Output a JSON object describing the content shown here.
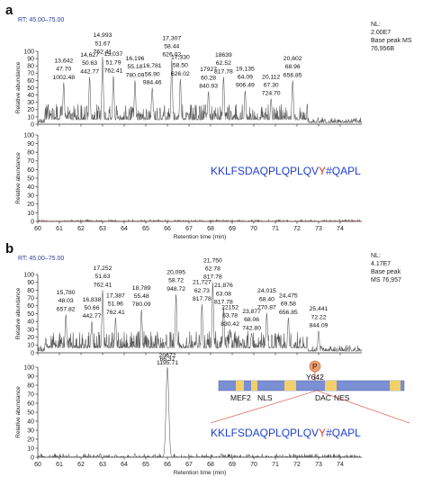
{
  "panels": [
    {
      "letter": "a",
      "rt_range": "RT: 45.00–75.00",
      "nl_lines": [
        "NL:",
        "2.00E7",
        "Base peak MS",
        "76,956B"
      ],
      "chart_data": [
        {
          "type": "line",
          "xlim": [
            60,
            75
          ],
          "ylim": [
            0,
            100
          ],
          "xticks": [
            60,
            61,
            62,
            63,
            64,
            65,
            66,
            67,
            68,
            69,
            70,
            71,
            72,
            73,
            74
          ],
          "yticks": [
            0,
            10,
            20,
            30,
            40,
            50,
            60,
            70,
            80,
            90,
            100
          ],
          "ylabel": "Relative abundance",
          "peaks": [
            {
              "x": 61.2,
              "y": 57,
              "label": [
                "13,642",
                "47.70",
                "1002.48"
              ]
            },
            {
              "x": 62.4,
              "y": 65,
              "label": [
                "14,627",
                "50.63",
                "442.77"
              ]
            },
            {
              "x": 63.0,
              "y": 92,
              "label": [
                "14,993",
                "51.67",
                "762.41"
              ]
            },
            {
              "x": 63.5,
              "y": 66,
              "label": [
                "15,037",
                "51.79",
                "762.41"
              ]
            },
            {
              "x": 64.5,
              "y": 60,
              "label": [
                "16,196",
                "55.18",
                "780.09"
              ]
            },
            {
              "x": 65.3,
              "y": 50,
              "label": [
                "16,781",
                "56.90",
                "984.46"
              ]
            },
            {
              "x": 66.2,
              "y": 88,
              "label": [
                "17,307",
                "58.44",
                "626.02"
              ]
            },
            {
              "x": 66.6,
              "y": 62,
              "label": [
                "17,330",
                "58.50",
                "626.02"
              ]
            },
            {
              "x": 67.9,
              "y": 45,
              "label": [
                "17927",
                "60.28",
                "840.93"
              ]
            },
            {
              "x": 68.6,
              "y": 65,
              "label": [
                "18639",
                "62.52",
                "817.78"
              ]
            },
            {
              "x": 69.6,
              "y": 46,
              "label": [
                "19,135",
                "64.09",
                "906.49"
              ]
            },
            {
              "x": 70.8,
              "y": 35,
              "label": [
                "20,112",
                "67.30",
                "724.70"
              ]
            },
            {
              "x": 71.8,
              "y": 60,
              "label": [
                "20,602",
                "68.96",
                "656.85"
              ]
            }
          ]
        },
        {
          "type": "line",
          "xlim": [
            60,
            75
          ],
          "ylim": [
            0,
            100
          ],
          "xticks": [
            60,
            61,
            62,
            63,
            64,
            65,
            66,
            67,
            68,
            69,
            70,
            71,
            72,
            73,
            74
          ],
          "yticks": [
            0,
            10,
            20,
            30,
            40,
            50,
            60,
            70,
            80,
            90,
            100
          ],
          "ylabel": "Relative abundance",
          "xlabel": "Retention time (min)",
          "peaks": []
        }
      ],
      "sequence": {
        "before": "KKLFSDAQPLQPLQV",
        "site": "Y",
        "after": "#QAPL"
      }
    },
    {
      "letter": "b",
      "rt_range": "RT: 45.00–75.00",
      "nl_lines": [
        "NL:",
        "4.17E7",
        "Base peak",
        "MS 76,957"
      ],
      "chart_data": [
        {
          "type": "line",
          "xlim": [
            60,
            75
          ],
          "ylim": [
            0,
            100
          ],
          "xticks": [
            60,
            61,
            62,
            63,
            64,
            65,
            66,
            67,
            68,
            69,
            70,
            71,
            72,
            73,
            74
          ],
          "yticks": [
            0,
            10,
            20,
            30,
            40,
            50,
            60,
            70,
            80,
            90,
            100
          ],
          "ylabel": "Relative abundance",
          "peaks": [
            {
              "x": 61.3,
              "y": 49,
              "label": [
                "15,780",
                "48.03",
                "657.82"
              ]
            },
            {
              "x": 62.5,
              "y": 40,
              "label": [
                "16,838",
                "50.66",
                "442.77"
              ]
            },
            {
              "x": 63.0,
              "y": 80,
              "label": [
                "17,252",
                "51.63",
                "762.41"
              ]
            },
            {
              "x": 63.6,
              "y": 45,
              "label": [
                "17,387",
                "51.96",
                "762.41"
              ]
            },
            {
              "x": 64.8,
              "y": 55,
              "label": [
                "18,789",
                "55.48",
                "780.09"
              ]
            },
            {
              "x": 66.4,
              "y": 75,
              "label": [
                "20,095",
                "58.72",
                "948.72"
              ]
            },
            {
              "x": 67.6,
              "y": 62,
              "label": [
                "21,727",
                "62.73",
                "817.78"
              ]
            },
            {
              "x": 68.1,
              "y": 90,
              "label": [
                "21,750",
                "62.78",
                "817.78"
              ]
            },
            {
              "x": 68.6,
              "y": 58,
              "label": [
                "21,876",
                "63.08",
                "817.78"
              ]
            },
            {
              "x": 68.9,
              "y": 30,
              "label": [
                "22152",
                "63.78",
                "830.42"
              ]
            },
            {
              "x": 69.9,
              "y": 25,
              "label": [
                "23,877",
                "68.06",
                "742.80"
              ]
            },
            {
              "x": 70.6,
              "y": 51,
              "label": [
                "24,015",
                "68.40",
                "770.87"
              ]
            },
            {
              "x": 71.6,
              "y": 45,
              "label": [
                "24,475",
                "69.58",
                "656.85"
              ]
            },
            {
              "x": 73.0,
              "y": 28,
              "label": [
                "25,441",
                "72.22",
                "844.09"
              ]
            }
          ]
        },
        {
          "type": "line",
          "xlim": [
            60,
            75
          ],
          "ylim": [
            0,
            100
          ],
          "xticks": [
            60,
            61,
            62,
            63,
            64,
            65,
            66,
            67,
            68,
            69,
            70,
            71,
            72,
            73,
            74
          ],
          "yticks": [
            0,
            10,
            20,
            30,
            40,
            50,
            60,
            70,
            80,
            90,
            100
          ],
          "ylabel": "Relative abundance",
          "xlabel": "Retention time (min)",
          "peaks": [
            {
              "x": 66.0,
              "y": 100,
              "label": [
                "20672",
                "66.37",
                "1195.71"
              ]
            }
          ]
        }
      ],
      "sequence": {
        "before": "KKLFSDAQPLQPLQV",
        "site": "Y",
        "after": "#QAPL"
      },
      "domain": {
        "phospho_symbol": "P",
        "site_label": "Y642",
        "labels": [
          "MEF2",
          "NLS",
          "DAC",
          "NES"
        ],
        "colors": {
          "bar": "#7b8fd4",
          "block": "#f2cf6b",
          "phospho": "#f0a070",
          "accent": "#d8382a"
        }
      }
    }
  ],
  "colors": {
    "trace": "#555555",
    "site": "#d8382a",
    "sequence": "#1f3fd0",
    "rt": "#2a3c9a"
  }
}
